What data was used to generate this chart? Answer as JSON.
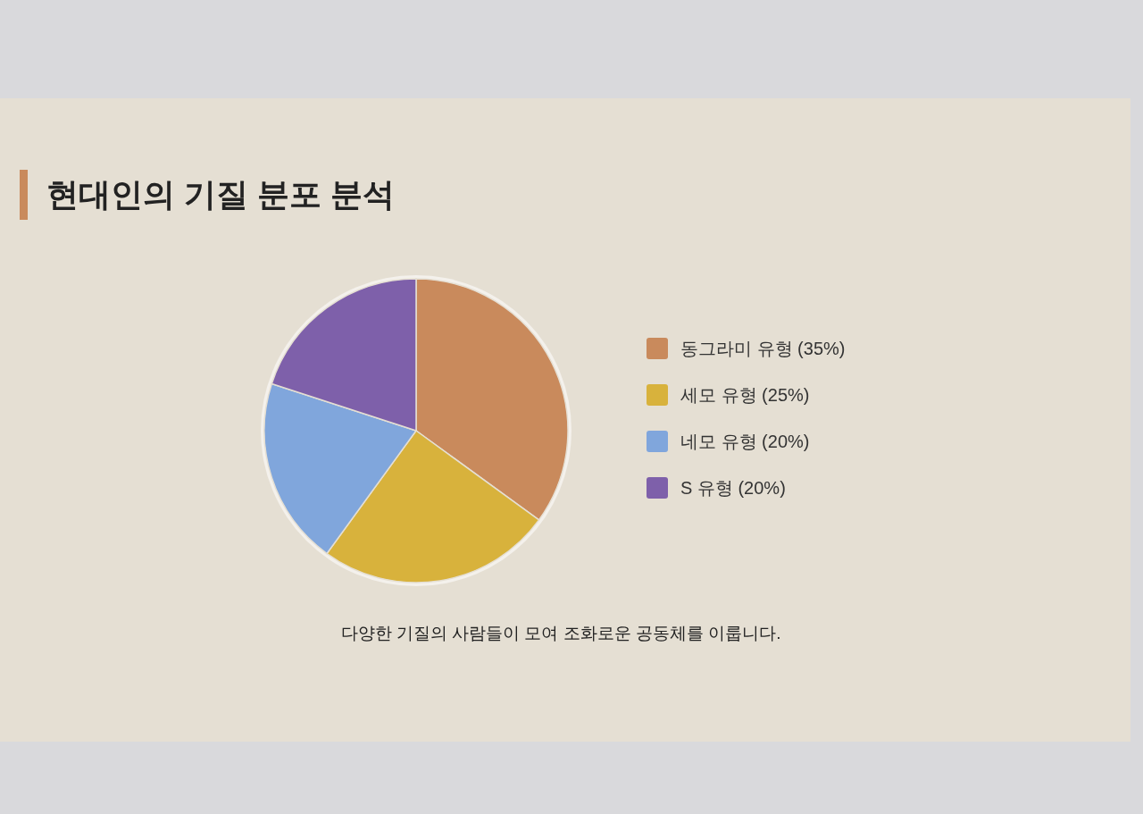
{
  "chart_data": {
    "type": "pie",
    "title": "현대인의 기질 분포 분석",
    "categories": [
      "동그라미 유형 (35%)",
      "세모 유형 (25%)",
      "네모 유형 (20%)",
      "S 유형 (20%)"
    ],
    "values": [
      35,
      25,
      20,
      20
    ],
    "colors": [
      "#c98a5c",
      "#d8b23c",
      "#80a6dc",
      "#7e60aa"
    ],
    "legend": "right",
    "annotations": [
      "다양한 기질의 사람들이 모여 조화로운 공동체를 이룹니다."
    ]
  }
}
